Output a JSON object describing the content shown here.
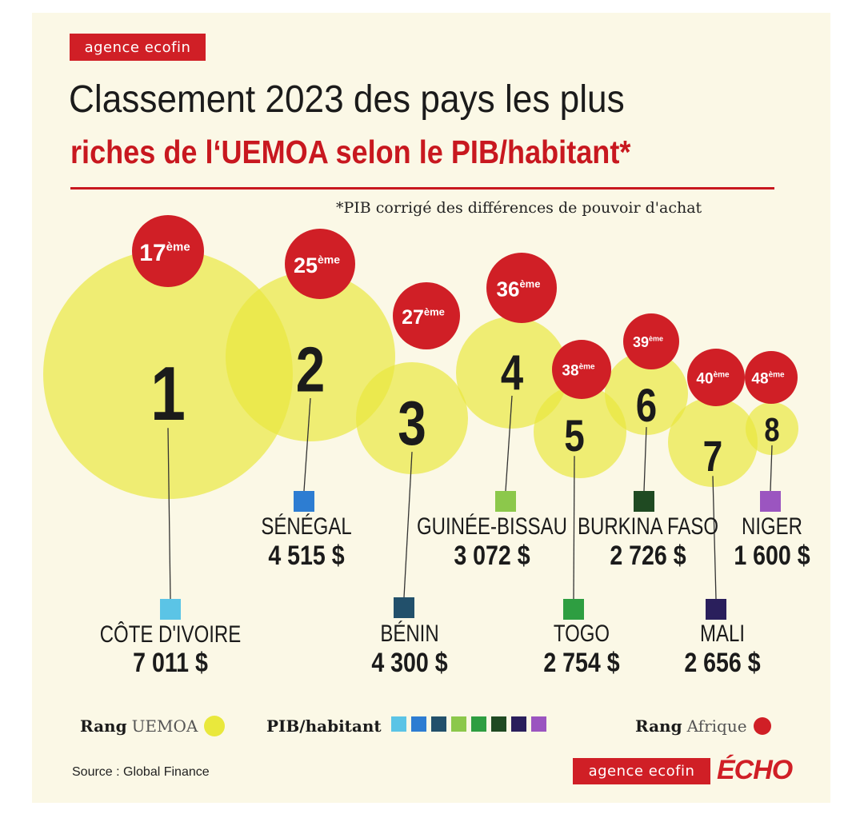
{
  "header": {
    "brand": "agence ecofin",
    "title_line1": "Classement 2023 des pays les plus",
    "title_line2": "riches de l‘UEMOA selon le PIB/habitant*",
    "footnote": "*PIB corrigé des différences de pouvoir d'achat"
  },
  "chart_data": {
    "type": "bubble",
    "title": "Classement 2023 des pays les plus riches de l‘UEMOA selon le PIB/habitant*",
    "unit": "$",
    "rank_africa_suffix": "ème",
    "countries": [
      {
        "rank_uemoa": "1",
        "rank_africa": "17",
        "name": "CÔTE D'IVOIRE",
        "gdp_label": "7 011 $",
        "gdp_value": 7011,
        "color": "#5bc4e6"
      },
      {
        "rank_uemoa": "2",
        "rank_africa": "25",
        "name": "SÉNÉGAL",
        "gdp_label": "4 515 $",
        "gdp_value": 4515,
        "color": "#2d7dd2"
      },
      {
        "rank_uemoa": "3",
        "rank_africa": "27",
        "name": "BÉNIN",
        "gdp_label": "4 300  $",
        "gdp_value": 4300,
        "color": "#22506b"
      },
      {
        "rank_uemoa": "4",
        "rank_africa": "36",
        "name": "GUINÉE-BISSAU",
        "gdp_label": "3 072 $",
        "gdp_value": 3072,
        "color": "#8cc84b"
      },
      {
        "rank_uemoa": "5",
        "rank_africa": "38",
        "name": "TOGO",
        "gdp_label": "2 754 $",
        "gdp_value": 2754,
        "color": "#2e9e41"
      },
      {
        "rank_uemoa": "6",
        "rank_africa": "39",
        "name": "BURKINA FASO",
        "gdp_label": "2 726 $",
        "gdp_value": 2726,
        "color": "#1f4a22"
      },
      {
        "rank_uemoa": "7",
        "rank_africa": "40",
        "name": "MALI",
        "gdp_label": "2 656 $",
        "gdp_value": 2656,
        "color": "#2a1f5c"
      },
      {
        "rank_uemoa": "8",
        "rank_africa": "48",
        "name": "NIGER",
        "gdp_label": "1 600 $",
        "gdp_value": 1600,
        "color": "#9b55c0"
      }
    ],
    "bubble_color": "#e9e83c",
    "rank_badge_color": "#d01f26"
  },
  "legend": {
    "rank_uemoa_bold": "Rang",
    "rank_uemoa_text": "UEMOA",
    "gdp_label": "PIB/habitant",
    "rank_africa_bold": "Rang",
    "rank_africa_text": "Afrique"
  },
  "footer": {
    "source": "Source : Global Finance",
    "brand": "agence ecofin",
    "echo": "ÉCHO"
  }
}
